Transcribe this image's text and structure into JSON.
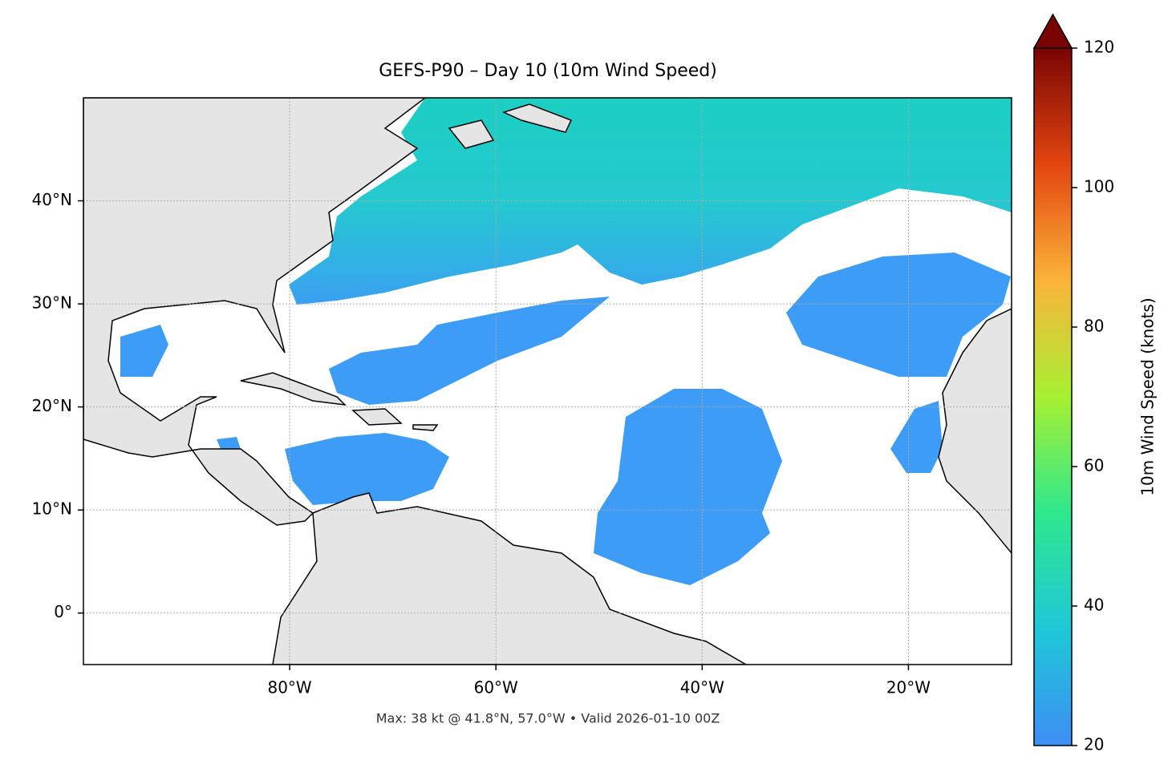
{
  "chart_data": {
    "type": "map",
    "title": "GEFS-P90 – Day 10 (10m Wind Speed)",
    "xlim": [
      -100,
      -10
    ],
    "ylim": [
      -5,
      50
    ],
    "xticks": [
      {
        "value": -80,
        "label": "80°W"
      },
      {
        "value": -60,
        "label": "60°W"
      },
      {
        "value": -40,
        "label": "40°W"
      },
      {
        "value": -20,
        "label": "20°W"
      }
    ],
    "yticks": [
      {
        "value": 0,
        "label": "0°"
      },
      {
        "value": 10,
        "label": "10°N"
      },
      {
        "value": 20,
        "label": "20°N"
      },
      {
        "value": 30,
        "label": "30°N"
      },
      {
        "value": 40,
        "label": "40°N"
      }
    ],
    "grid": true,
    "footnote": "Max: 38 kt @ 41.8°N, 57.0°W • Valid 2026-01-10 00Z",
    "colorbar": {
      "label": "10m Wind Speed (knots)",
      "lim": [
        20,
        120
      ],
      "ticks": [
        20,
        40,
        60,
        80,
        100,
        120
      ],
      "colors": [
        "#3d8ef5",
        "#1ec8d8",
        "#2ee88e",
        "#a8f032",
        "#fbb33a",
        "#e2460f",
        "#7a0403"
      ]
    }
  }
}
